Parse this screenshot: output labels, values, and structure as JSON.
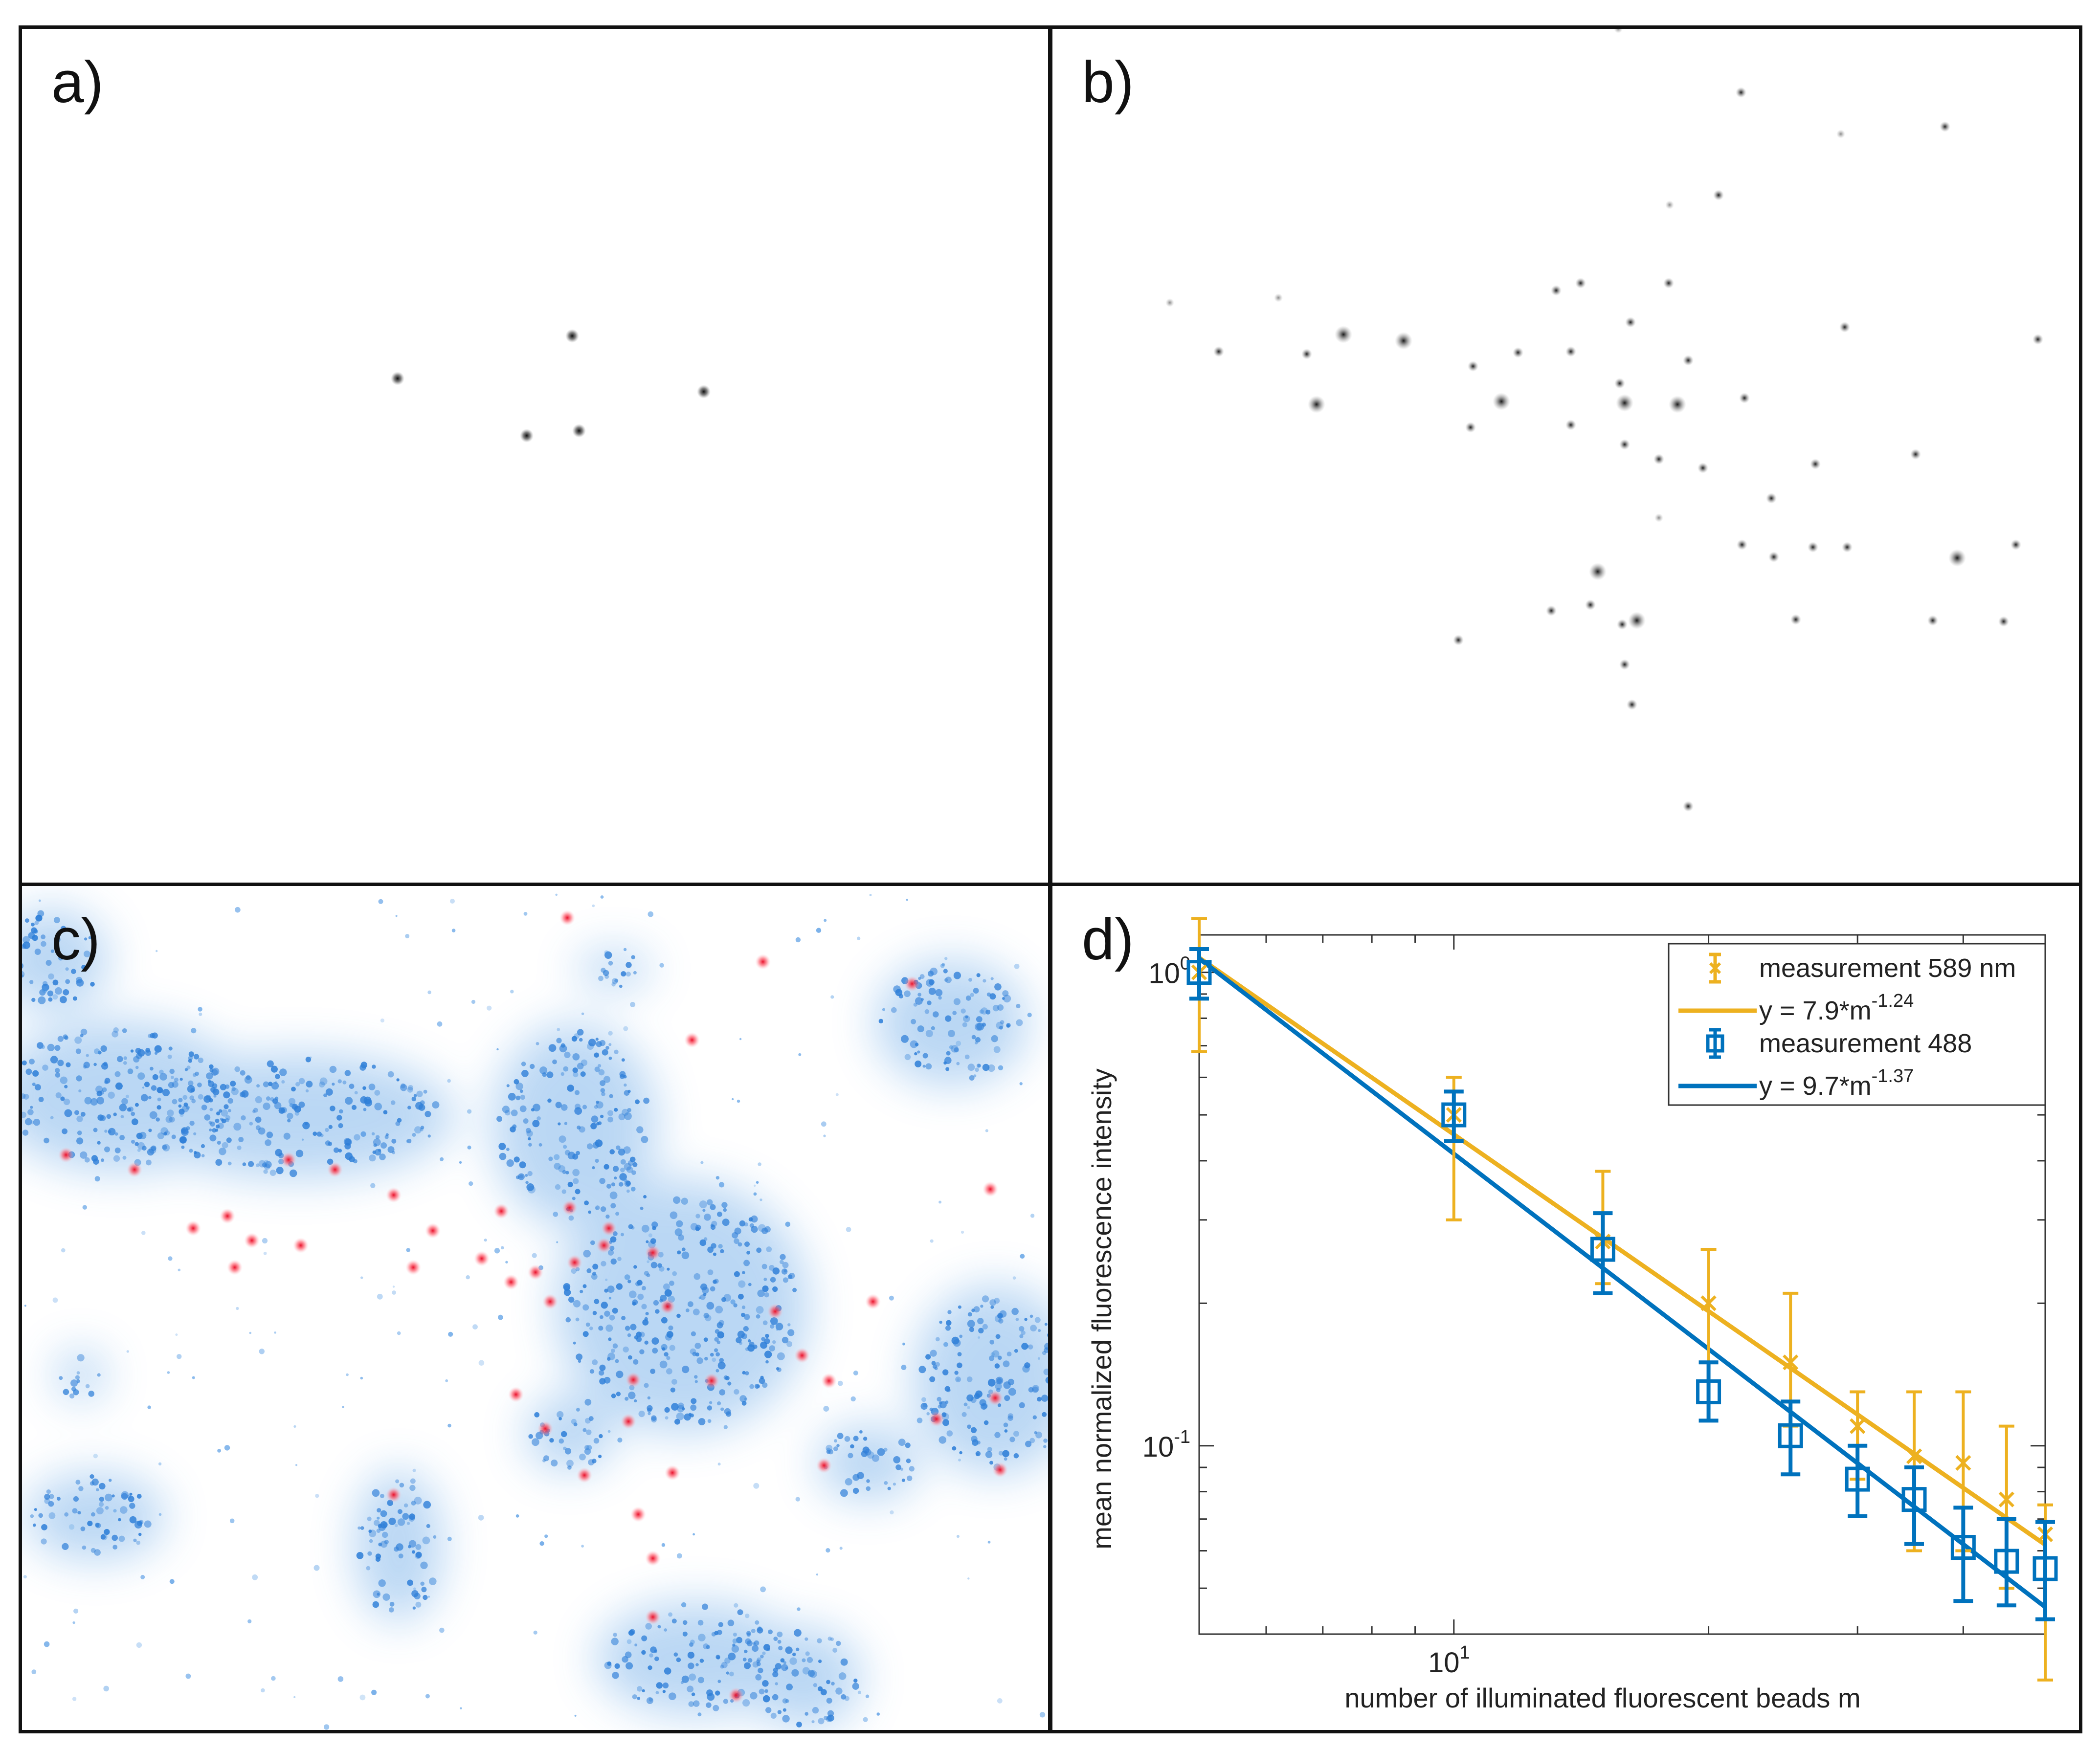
{
  "panels": {
    "a": {
      "label": "a)"
    },
    "b": {
      "label": "b)"
    },
    "c": {
      "label": "c)"
    },
    "d": {
      "label": "d)"
    }
  },
  "chart_data": {
    "type": "scatter",
    "scale": "log-log",
    "xlabel": "number of illuminated fluorescent beads m",
    "ylabel": "mean normalized fluorescence intensity",
    "xlim": [
      5,
      50
    ],
    "ylim": [
      0.04,
      1.2
    ],
    "x_ticks": [
      {
        "value": 10,
        "base": "10",
        "exp": "1"
      }
    ],
    "y_ticks": [
      {
        "value": 1,
        "base": "10",
        "exp": "0"
      },
      {
        "value": 0.1,
        "base": "10",
        "exp": "-1"
      }
    ],
    "legend_position": "top-right",
    "series": [
      {
        "name": "measurement 589 nm",
        "color": "#EDB120",
        "marker": "x",
        "x": [
          5,
          10,
          15,
          20,
          25,
          30,
          35,
          40,
          45,
          50
        ],
        "y": [
          1.0,
          0.5,
          0.27,
          0.2,
          0.15,
          0.11,
          0.095,
          0.092,
          0.077,
          0.065
        ],
        "err_low": [
          0.68,
          0.3,
          0.22,
          0.15,
          0.11,
          0.085,
          0.06,
          0.06,
          0.05,
          0.032
        ],
        "err_high": [
          1.3,
          0.6,
          0.38,
          0.26,
          0.21,
          0.13,
          0.13,
          0.13,
          0.11,
          0.075
        ]
      },
      {
        "name": "measurement 488",
        "color": "#0072BD",
        "marker": "square",
        "x": [
          5,
          10,
          15,
          20,
          25,
          30,
          35,
          40,
          45,
          50
        ],
        "y": [
          1.0,
          0.5,
          0.26,
          0.13,
          0.105,
          0.085,
          0.077,
          0.061,
          0.057,
          0.055
        ],
        "err_low": [
          0.88,
          0.44,
          0.21,
          0.113,
          0.087,
          0.071,
          0.062,
          0.047,
          0.046,
          0.043
        ],
        "err_high": [
          1.12,
          0.56,
          0.31,
          0.15,
          0.124,
          0.1,
          0.09,
          0.074,
          0.07,
          0.069
        ]
      }
    ],
    "fits": [
      {
        "name": "y = 7.9*m",
        "exp": "-1.24",
        "a": 7.9,
        "b": -1.24,
        "color": "#EDB120"
      },
      {
        "name": "y = 9.7*m",
        "exp": "-1.37",
        "a": 9.7,
        "b": -1.37,
        "color": "#0072BD"
      }
    ]
  }
}
